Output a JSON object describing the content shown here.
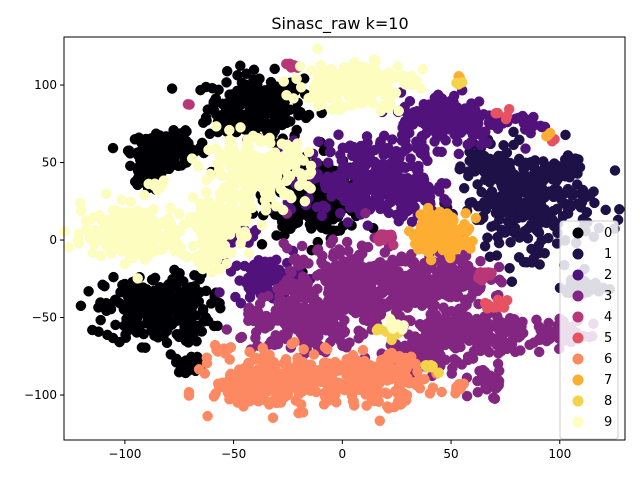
{
  "chart_data": {
    "type": "scatter",
    "title": "Sinasc_raw k=10",
    "xlabel": "",
    "ylabel": "",
    "xlim": [
      -128,
      130
    ],
    "ylim": [
      -129,
      131
    ],
    "x_ticks": [
      -100,
      -50,
      0,
      50,
      100
    ],
    "y_ticks": [
      -100,
      -50,
      0,
      50,
      100
    ],
    "grid": false,
    "legend_position": "center-right",
    "series": [
      {
        "name": "0",
        "color": "#000004",
        "clusters": [
          {
            "cx": -40,
            "cy": 85,
            "rx": 20,
            "ry": 20,
            "n": 240
          },
          {
            "cx": -80,
            "cy": 58,
            "rx": 16,
            "ry": 10,
            "n": 120
          },
          {
            "cx": -90,
            "cy": 40,
            "rx": 8,
            "ry": 8,
            "n": 40
          },
          {
            "cx": -12,
            "cy": 28,
            "rx": 20,
            "ry": 22,
            "n": 260
          },
          {
            "cx": -85,
            "cy": -45,
            "rx": 22,
            "ry": 20,
            "n": 280
          },
          {
            "cx": -70,
            "cy": -80,
            "rx": 6,
            "ry": 5,
            "n": 20
          }
        ]
      },
      {
        "name": "1",
        "color": "#1d1147",
        "clusters": [
          {
            "cx": 85,
            "cy": 25,
            "rx": 28,
            "ry": 30,
            "n": 320
          },
          {
            "cx": 100,
            "cy": 45,
            "rx": 8,
            "ry": 6,
            "n": 40
          },
          {
            "cx": 110,
            "cy": -30,
            "rx": 8,
            "ry": 8,
            "n": 40
          },
          {
            "cx": 65,
            "cy": 50,
            "rx": 8,
            "ry": 5,
            "n": 30
          }
        ]
      },
      {
        "name": "2",
        "color": "#51127c",
        "clusters": [
          {
            "cx": 10,
            "cy": 40,
            "rx": 24,
            "ry": 24,
            "n": 260
          },
          {
            "cx": 50,
            "cy": 78,
            "rx": 22,
            "ry": 16,
            "n": 200
          },
          {
            "cx": 30,
            "cy": 30,
            "rx": 12,
            "ry": 12,
            "n": 80
          },
          {
            "cx": -35,
            "cy": -25,
            "rx": 14,
            "ry": 12,
            "n": 90
          },
          {
            "cx": -50,
            "cy": 5,
            "rx": 10,
            "ry": 8,
            "n": 40
          },
          {
            "cx": 85,
            "cy": 75,
            "rx": 6,
            "ry": 6,
            "n": 20
          }
        ]
      },
      {
        "name": "3",
        "color": "#822681",
        "clusters": [
          {
            "cx": 5,
            "cy": -30,
            "rx": 28,
            "ry": 24,
            "n": 340
          },
          {
            "cx": 45,
            "cy": -25,
            "rx": 20,
            "ry": 16,
            "n": 180
          },
          {
            "cx": 60,
            "cy": -60,
            "rx": 24,
            "ry": 16,
            "n": 200
          },
          {
            "cx": -20,
            "cy": -55,
            "rx": 24,
            "ry": 16,
            "n": 180
          },
          {
            "cx": 35,
            "cy": -75,
            "rx": 16,
            "ry": 10,
            "n": 100
          },
          {
            "cx": 100,
            "cy": -60,
            "rx": 12,
            "ry": 8,
            "n": 50
          },
          {
            "cx": 68,
            "cy": -92,
            "rx": 8,
            "ry": 8,
            "n": 30
          }
        ]
      },
      {
        "name": "4",
        "color": "#b73779",
        "clusters": [
          {
            "cx": -25,
            "cy": 112,
            "rx": 3,
            "ry": 2,
            "n": 6
          },
          {
            "cx": -70,
            "cy": 88,
            "rx": 2,
            "ry": 2,
            "n": 2
          },
          {
            "cx": 65,
            "cy": -22,
            "rx": 6,
            "ry": 3,
            "n": 12
          },
          {
            "cx": 20,
            "cy": 0,
            "rx": 6,
            "ry": 5,
            "n": 10
          }
        ]
      },
      {
        "name": "5",
        "color": "#e75263",
        "clusters": [
          {
            "cx": 70,
            "cy": -42,
            "rx": 6,
            "ry": 4,
            "n": 12
          },
          {
            "cx": 75,
            "cy": 80,
            "rx": 4,
            "ry": 4,
            "n": 5
          },
          {
            "cx": 95,
            "cy": 65,
            "rx": 3,
            "ry": 3,
            "n": 4
          }
        ]
      },
      {
        "name": "6",
        "color": "#fc8961",
        "clusters": [
          {
            "cx": -25,
            "cy": -90,
            "rx": 30,
            "ry": 16,
            "n": 260
          },
          {
            "cx": 15,
            "cy": -90,
            "rx": 20,
            "ry": 14,
            "n": 180
          },
          {
            "cx": -45,
            "cy": -98,
            "rx": 10,
            "ry": 8,
            "n": 60
          },
          {
            "cx": 55,
            "cy": -95,
            "rx": 4,
            "ry": 3,
            "n": 8
          },
          {
            "cx": -55,
            "cy": -70,
            "rx": 4,
            "ry": 3,
            "n": 8
          }
        ]
      },
      {
        "name": "7",
        "color": "#fdae32",
        "clusters": [
          {
            "cx": 45,
            "cy": 5,
            "rx": 12,
            "ry": 12,
            "n": 140
          },
          {
            "cx": 53,
            "cy": 105,
            "rx": 2,
            "ry": 2,
            "n": 3
          },
          {
            "cx": 95,
            "cy": 68,
            "rx": 2,
            "ry": 2,
            "n": 3
          }
        ]
      },
      {
        "name": "8",
        "color": "#f3d34a",
        "clusters": [
          {
            "cx": 22,
            "cy": -58,
            "rx": 6,
            "ry": 4,
            "n": 12
          },
          {
            "cx": 53,
            "cy": 102,
            "rx": 2,
            "ry": 2,
            "n": 3
          },
          {
            "cx": 42,
            "cy": -82,
            "rx": 4,
            "ry": 3,
            "n": 6
          }
        ]
      },
      {
        "name": "9",
        "color": "#fcfdbf",
        "clusters": [
          {
            "cx": 5,
            "cy": 100,
            "rx": 24,
            "ry": 14,
            "n": 200
          },
          {
            "cx": -40,
            "cy": 45,
            "rx": 22,
            "ry": 18,
            "n": 220
          },
          {
            "cx": -95,
            "cy": 5,
            "rx": 22,
            "ry": 16,
            "n": 220
          },
          {
            "cx": -55,
            "cy": 10,
            "rx": 12,
            "ry": 14,
            "n": 100
          },
          {
            "cx": -60,
            "cy": -10,
            "rx": 8,
            "ry": 8,
            "n": 40
          },
          {
            "cx": 25,
            "cy": -55,
            "rx": 5,
            "ry": 4,
            "n": 10
          },
          {
            "cx": -85,
            "cy": 35,
            "rx": 4,
            "ry": 3,
            "n": 8
          }
        ]
      }
    ]
  }
}
